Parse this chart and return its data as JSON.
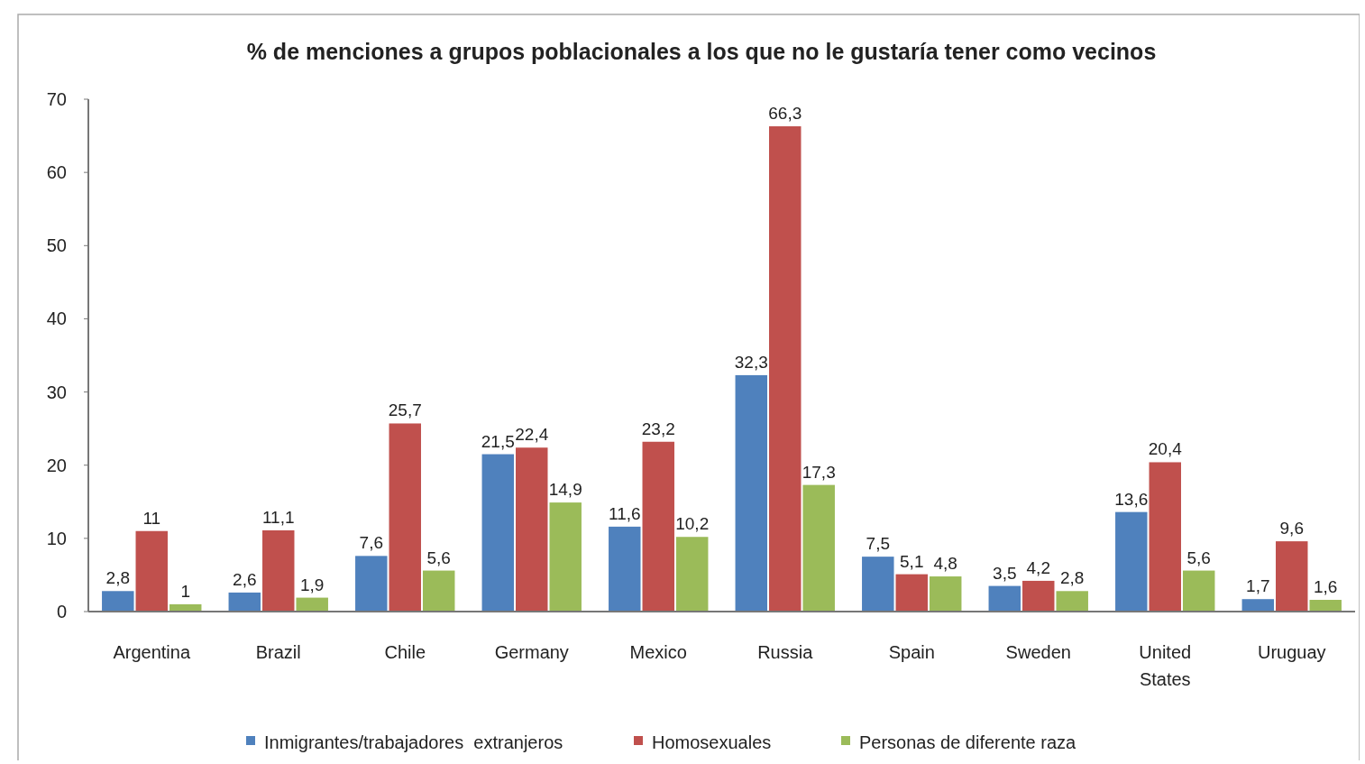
{
  "chart_data": {
    "type": "bar",
    "title": "% de menciones a grupos poblacionales a los que no le gustaría tener como vecinos",
    "categories": [
      "Argentina",
      "Brazil",
      "Chile",
      "Germany",
      "Mexico",
      "Russia",
      "Spain",
      "Sweden",
      "United States",
      "Uruguay"
    ],
    "series": [
      {
        "name": "Inmigrantes/trabajadores  extranjeros",
        "color": "#4f81bd",
        "values": [
          2.8,
          2.6,
          7.6,
          21.5,
          11.6,
          32.3,
          7.5,
          3.5,
          13.6,
          1.7
        ],
        "value_labels": [
          "2,8",
          "2,6",
          "7,6",
          "21,5",
          "11,6",
          "32,3",
          "7,5",
          "3,5",
          "13,6",
          "1,7"
        ]
      },
      {
        "name": "Homosexuales",
        "color": "#c0504d",
        "values": [
          11,
          11.1,
          25.7,
          22.4,
          23.2,
          66.3,
          5.1,
          4.2,
          20.4,
          9.6
        ],
        "value_labels": [
          "11",
          "11,1",
          "25,7",
          "22,4",
          "23,2",
          "66,3",
          "5,1",
          "4,2",
          "20,4",
          "9,6"
        ]
      },
      {
        "name": "Personas de diferente raza",
        "color": "#9bbb59",
        "values": [
          1,
          1.9,
          5.6,
          14.9,
          10.2,
          17.3,
          4.8,
          2.8,
          5.6,
          1.6
        ],
        "value_labels": [
          "1",
          "1,9",
          "5,6",
          "14,9",
          "10,2",
          "17,3",
          "4,8",
          "2,8",
          "5,6",
          "1,6"
        ]
      }
    ],
    "ylim": [
      0,
      70
    ],
    "yticks": [
      0,
      10,
      20,
      30,
      40,
      50,
      60,
      70
    ],
    "grid": false,
    "legend": "bottom"
  }
}
